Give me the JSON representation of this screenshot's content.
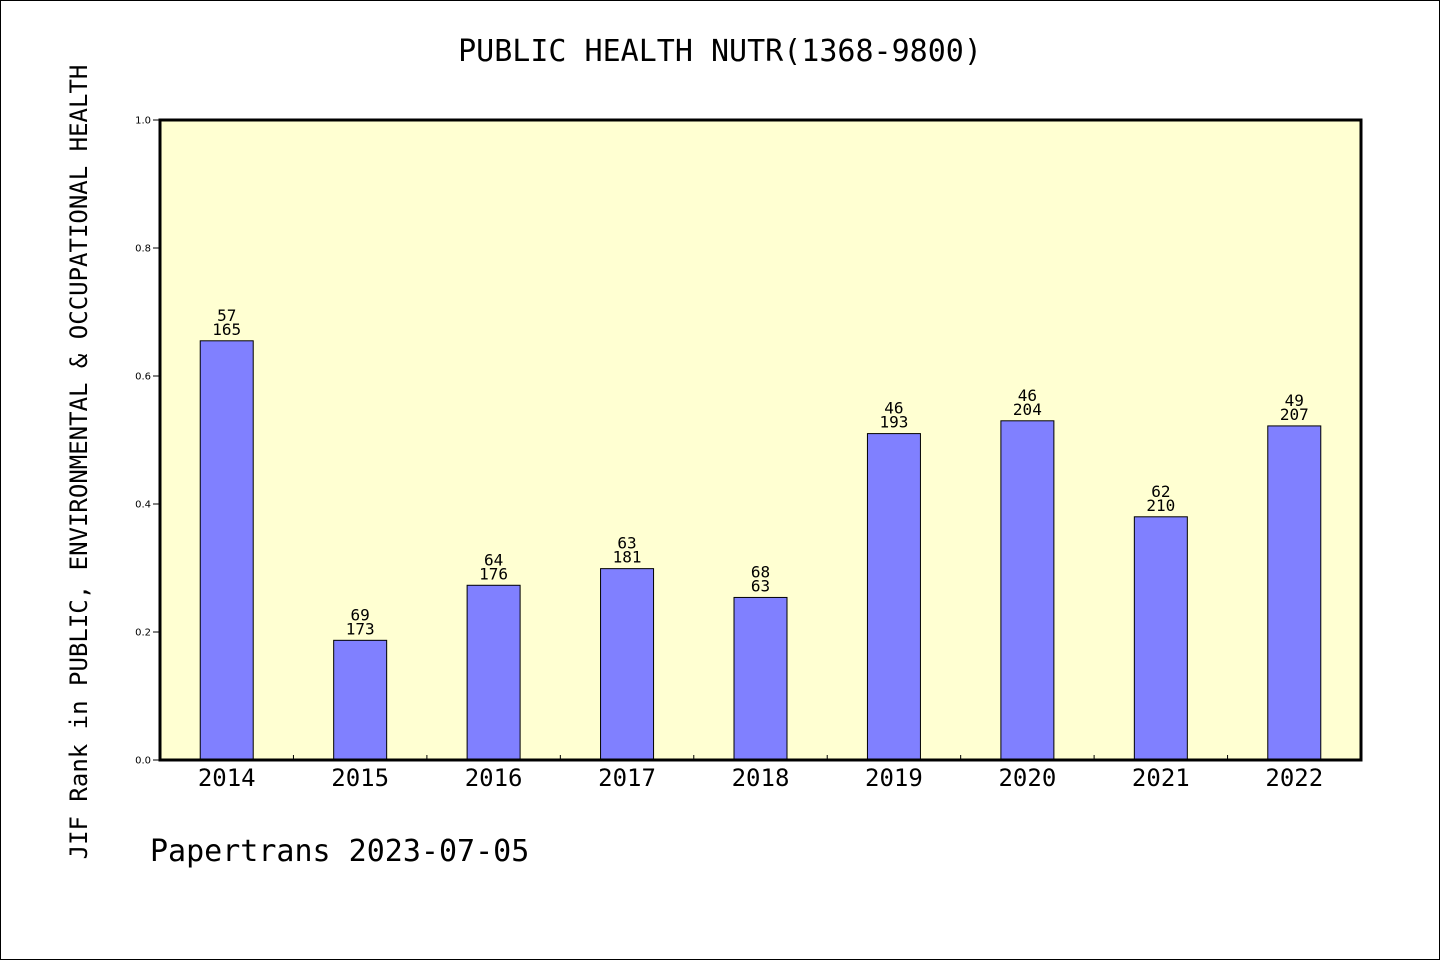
{
  "page": {
    "title": "PUBLIC HEALTH NUTR(1368-9800)",
    "ylabel": "JIF Rank in PUBLIC, ENVIRONMENTAL & OCCUPATIONAL HEALTH",
    "footer": "Papertrans 2023-07-05"
  },
  "colors": {
    "plot_background": "#ffffd2",
    "bar_fill": "#8080ff",
    "bar_stroke": "#000000"
  },
  "chart_data": {
    "type": "bar",
    "title": "PUBLIC HEALTH NUTR(1368-9800)",
    "xlabel": "",
    "ylabel": "JIF Rank in PUBLIC, ENVIRONMENTAL & OCCUPATIONAL HEALTH",
    "ylim": [
      0,
      1.0
    ],
    "yticks": [
      "0.0",
      "0.2",
      "0.4",
      "0.6",
      "0.8",
      "1.0"
    ],
    "grid": false,
    "categories": [
      "2014",
      "2015",
      "2016",
      "2017",
      "2018",
      "2019",
      "2020",
      "2021",
      "2022"
    ],
    "values": [
      0.655,
      0.187,
      0.273,
      0.299,
      0.254,
      0.51,
      0.53,
      0.38,
      0.522
    ],
    "rank_labels": [
      "57",
      "69",
      "64",
      "63",
      "68",
      "46",
      "46",
      "62",
      "49"
    ],
    "total_labels": [
      "165",
      "173",
      "176",
      "181",
      "63",
      "193",
      "204",
      "210",
      "207"
    ]
  }
}
